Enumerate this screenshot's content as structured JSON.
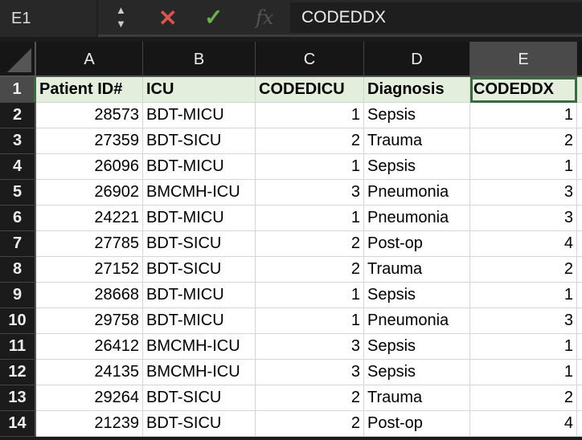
{
  "formula_bar": {
    "name_box": "E1",
    "value": "CODEDDX",
    "cancel_icon": "x-icon",
    "confirm_icon": "check-icon",
    "fx_label": "fx"
  },
  "columns": [
    "A",
    "B",
    "C",
    "D",
    "E"
  ],
  "headers": [
    "Patient ID#",
    "ICU",
    "CODEDICU",
    "Diagnosis",
    "CODEDDX"
  ],
  "selected_cell": "E1",
  "rows": [
    [
      "28573",
      "BDT-MICU",
      "1",
      "Sepsis",
      "1"
    ],
    [
      "27359",
      "BDT-SICU",
      "2",
      "Trauma",
      "2"
    ],
    [
      "26096",
      "BDT-MICU",
      "1",
      "Sepsis",
      "1"
    ],
    [
      "26902",
      "BMCMH-ICU",
      "3",
      "Pneumonia",
      "3"
    ],
    [
      "24221",
      "BDT-MICU",
      "1",
      "Pneumonia",
      "3"
    ],
    [
      "27785",
      "BDT-SICU",
      "2",
      "Post-op",
      "4"
    ],
    [
      "27152",
      "BDT-SICU",
      "2",
      "Trauma",
      "2"
    ],
    [
      "28668",
      "BDT-MICU",
      "1",
      "Sepsis",
      "1"
    ],
    [
      "29758",
      "BDT-MICU",
      "1",
      "Pneumonia",
      "3"
    ],
    [
      "26412",
      "BMCMH-ICU",
      "3",
      "Sepsis",
      "1"
    ],
    [
      "24135",
      "BMCMH-ICU",
      "3",
      "Sepsis",
      "1"
    ],
    [
      "29264",
      "BDT-SICU",
      "2",
      "Trauma",
      "2"
    ],
    [
      "21239",
      "BDT-SICU",
      "2",
      "Post-op",
      "4"
    ]
  ]
}
